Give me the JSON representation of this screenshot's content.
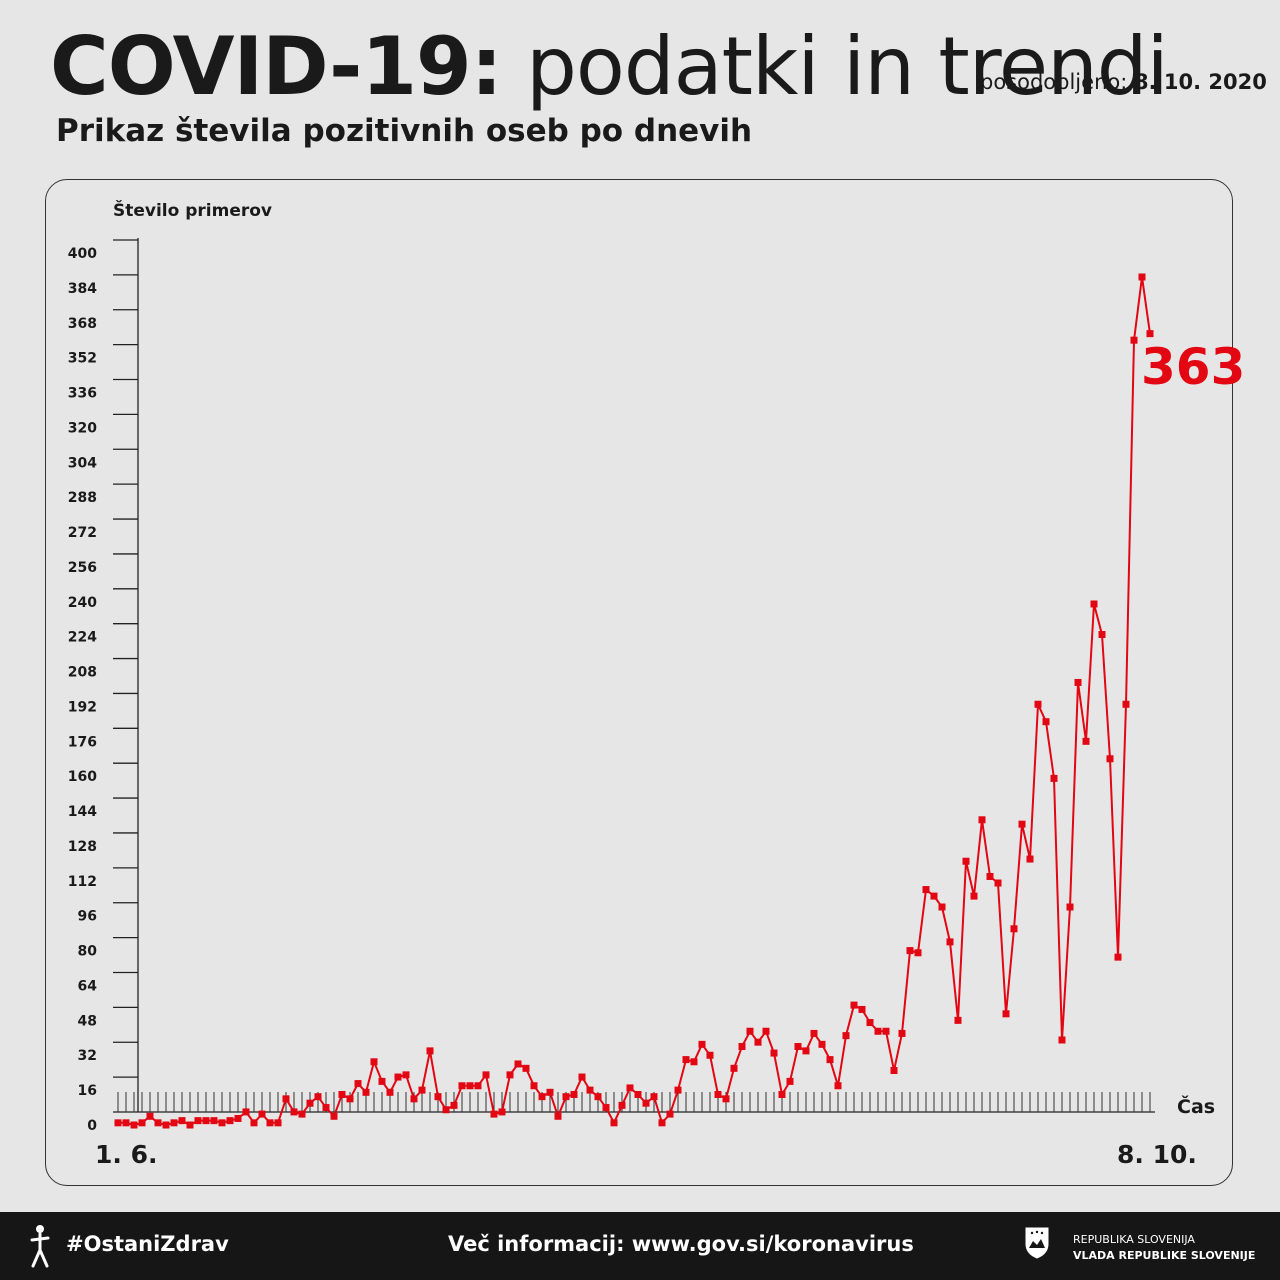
{
  "header": {
    "title_bold": "COVID-19:",
    "title_light": "podatki in trendi",
    "updated_label": "posodobljeno:",
    "updated_date": "8. 10. 2020",
    "subtitle": "Prikaz števila pozitivnih oseb po dnevih"
  },
  "footer": {
    "hashtag": "#OstaniZdrav",
    "more_info": "Več informacij: www.gov.si/koronavirus",
    "gov_line1": "REPUBLIKA SLOVENIJA",
    "gov_line2": "VLADA REPUBLIKE SLOVENIJE"
  },
  "chart_data": {
    "type": "line",
    "ylabel": "Število primerov",
    "xlabel": "Čas",
    "x_start_label": "1. 6.",
    "x_end_label": "8. 10.",
    "ylim": [
      0,
      400
    ],
    "yticks": [
      0,
      16,
      32,
      48,
      64,
      80,
      96,
      112,
      128,
      144,
      160,
      176,
      192,
      208,
      224,
      240,
      256,
      272,
      288,
      304,
      320,
      336,
      352,
      368,
      384,
      400
    ],
    "highlight_value": "363",
    "color": "#e30613",
    "series": [
      {
        "values": [
          1,
          1,
          0,
          1,
          4,
          1,
          0,
          1,
          2,
          0,
          2,
          2,
          2,
          1,
          2,
          3,
          6,
          1,
          5,
          1,
          1,
          12,
          6,
          5,
          10,
          13,
          8,
          4,
          14,
          12,
          19,
          15,
          29,
          20,
          15,
          22,
          23,
          12,
          16,
          34,
          13,
          7,
          9,
          18,
          18,
          18,
          23,
          5,
          6,
          23,
          28,
          26,
          18,
          13,
          15,
          4,
          13,
          14,
          22,
          16,
          13,
          8,
          1,
          9,
          17,
          14,
          10,
          13,
          1,
          5,
          16,
          30,
          29,
          37,
          32,
          14,
          12,
          26,
          36,
          43,
          38,
          43,
          33,
          14,
          20,
          36,
          34,
          42,
          37,
          30,
          18,
          41,
          55,
          53,
          47,
          43,
          43,
          25,
          42,
          80,
          79,
          108,
          105,
          100,
          84,
          48,
          121,
          105,
          140,
          114,
          111,
          51,
          90,
          138,
          122,
          193,
          185,
          159,
          39,
          100,
          203,
          176,
          239,
          225,
          168,
          77,
          193,
          360,
          389,
          363
        ]
      }
    ]
  }
}
